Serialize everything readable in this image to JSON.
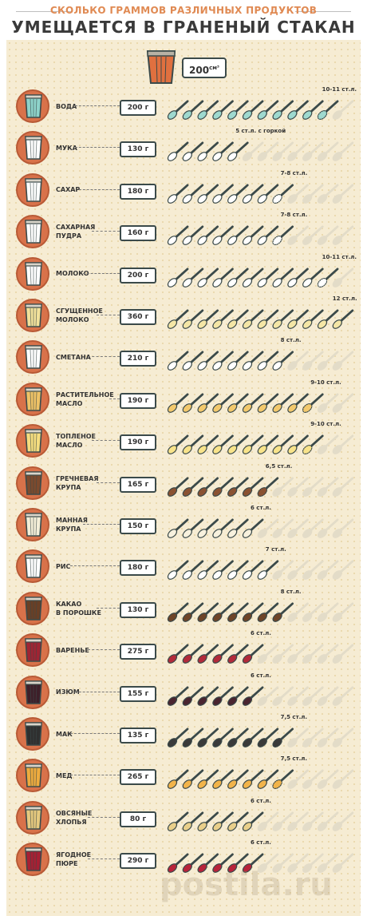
{
  "header": {
    "subtitle": "СКОЛЬКО ГРАММОВ РАЗЛИЧНЫХ ПРОДУКТОВ",
    "title": "УМЕЩАЕТСЯ В ГРАНЕНЫЙ СТАКАН",
    "volume": "200",
    "volume_unit": "см³"
  },
  "watermark": "postila.ru",
  "colors": {
    "accent": "#e0703f",
    "spoon_handle": "#3b4a4a",
    "ghost_spoon": "#e3dcc8"
  },
  "total_spoons": 12,
  "products": [
    {
      "name": [
        "ВОДА"
      ],
      "grams": "200 г",
      "note": "10-11 ст.л.",
      "spoons": 10.5,
      "color": "#9ed9cf",
      "glass": "#8ed3ca"
    },
    {
      "name": [
        "МУКА"
      ],
      "grams": "130 г",
      "note": "5 ст.л. с горкой",
      "spoons": 5,
      "color": "#ffffff",
      "glass": "#ffffff"
    },
    {
      "name": [
        "САХАР"
      ],
      "grams": "180 г",
      "note": "7-8 ст.л.",
      "spoons": 7.5,
      "color": "#ffffff",
      "glass": "#ffffff"
    },
    {
      "name": [
        "САХАРНАЯ",
        "ПУДРА"
      ],
      "grams": "160 г",
      "note": "7-8 ст.л.",
      "spoons": 7.5,
      "color": "#ffffff",
      "glass": "#ffffff"
    },
    {
      "name": [
        "МОЛОКО"
      ],
      "grams": "200 г",
      "note": "10-11 ст.л.",
      "spoons": 10.5,
      "color": "#ffffff",
      "glass": "#ffffff"
    },
    {
      "name": [
        "СГУЩЕННОЕ",
        "МОЛОКО"
      ],
      "grams": "360 г",
      "note": "12 ст.л.",
      "spoons": 12,
      "color": "#f4e6a6",
      "glass": "#f2e19b"
    },
    {
      "name": [
        "СМЕТАНА"
      ],
      "grams": "210 г",
      "note": "8 ст.л.",
      "spoons": 8,
      "color": "#ffffff",
      "glass": "#ffffff"
    },
    {
      "name": [
        "РАСТИТЕЛЬНОЕ",
        "МАСЛО"
      ],
      "grams": "190 г",
      "note": "9-10 ст.л.",
      "spoons": 9.5,
      "color": "#f3c96d",
      "glass": "#efc266"
    },
    {
      "name": [
        "ТОПЛЕНОЕ",
        "МАСЛО"
      ],
      "grams": "190 г",
      "note": "9-10 ст.л.",
      "spoons": 9.5,
      "color": "#f8e38a",
      "glass": "#f6dd7f"
    },
    {
      "name": [
        "ГРЕЧНЕВАЯ",
        "КРУПА"
      ],
      "grams": "165 г",
      "note": "6,5 ст.л.",
      "spoons": 6.5,
      "color": "#8a5232",
      "glass": "#7d4a2d"
    },
    {
      "name": [
        "МАННАЯ",
        "КРУПА"
      ],
      "grams": "150 г",
      "note": "6 ст.л.",
      "spoons": 6,
      "color": "#f7f1de",
      "glass": "#f4eed8"
    },
    {
      "name": [
        "РИС"
      ],
      "grams": "180 г",
      "note": "7 ст.л.",
      "spoons": 7,
      "color": "#ffffff",
      "glass": "#ffffff"
    },
    {
      "name": [
        "КАКАО",
        "В ПОРОШКЕ"
      ],
      "grams": "130 г",
      "note": "8 ст.л.",
      "spoons": 8,
      "color": "#6e4428",
      "glass": "#6a3f25"
    },
    {
      "name": [
        "ВАРЕНЬЕ"
      ],
      "grams": "275 г",
      "note": "6 ст.л.",
      "spoons": 6,
      "color": "#b22a3a",
      "glass": "#a02433"
    },
    {
      "name": [
        "ИЗЮМ"
      ],
      "grams": "155 г",
      "note": "6 ст.л.",
      "spoons": 6,
      "color": "#4a2530",
      "glass": "#3e1f29"
    },
    {
      "name": [
        "МАК"
      ],
      "grams": "135 г",
      "note": "7,5 ст.л.",
      "spoons": 7.5,
      "color": "#3a3a3a",
      "glass": "#2f2f2f"
    },
    {
      "name": [
        "МЕД"
      ],
      "grams": "265 г",
      "note": "7,5 ст.л.",
      "spoons": 7.5,
      "color": "#f2b44a",
      "glass": "#eeab3e"
    },
    {
      "name": [
        "ОВСЯНЫЕ",
        "ХЛОПЬЯ"
      ],
      "grams": "80 г",
      "note": "6 ст.л.",
      "spoons": 6,
      "color": "#e9cf8a",
      "glass": "#e6c97e"
    },
    {
      "name": [
        "ЯГОДНОЕ",
        "ПЮРЕ"
      ],
      "grams": "290 г",
      "note": "6 ст.л.",
      "spoons": 6,
      "color": "#b8233a",
      "glass": "#a81f33"
    }
  ]
}
